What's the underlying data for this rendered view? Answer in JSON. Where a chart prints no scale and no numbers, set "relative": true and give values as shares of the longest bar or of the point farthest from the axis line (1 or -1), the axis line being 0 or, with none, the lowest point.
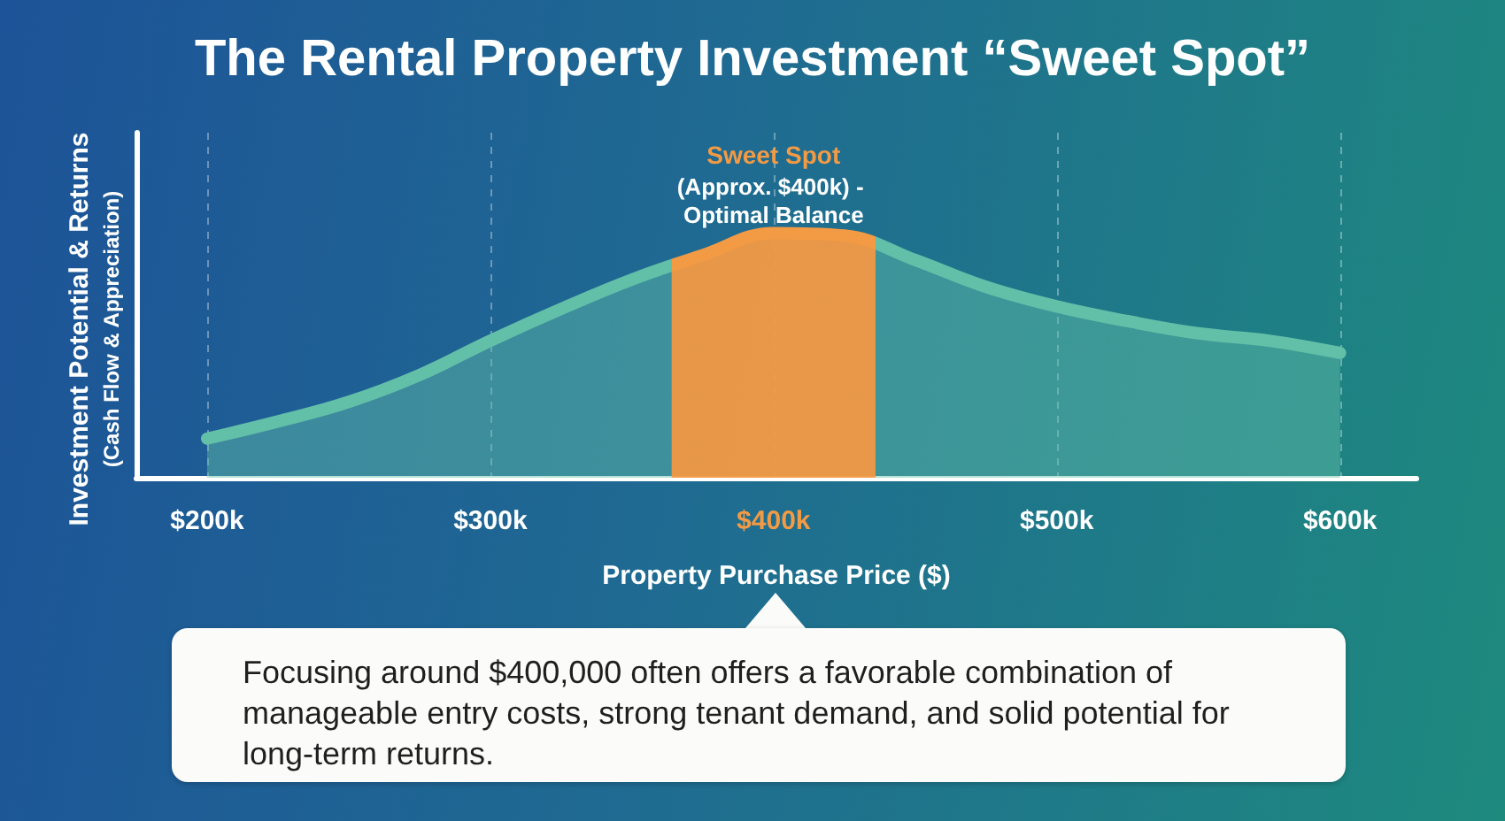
{
  "chart_data": {
    "type": "area",
    "title": "The Rental Property Investment “Sweet Spot”",
    "xlabel": "Property Purchase Price ($)",
    "ylabel": "Investment Potential & Returns",
    "relative": true,
    "x": [
      200,
      225,
      250,
      275,
      300,
      325,
      350,
      375,
      400,
      425,
      450,
      475,
      500,
      525,
      550,
      575,
      600
    ],
    "series": [
      {
        "color": "#62bfa8",
        "values": [
          0.16,
          0.23,
          0.31,
          0.42,
          0.56,
          0.69,
          0.81,
          0.91,
          1,
          0.99,
          0.89,
          0.78,
          0.7,
          0.64,
          0.59,
          0.56,
          0.51
        ]
      }
    ],
    "xlim": [
      175,
      627
    ],
    "xticks": [
      {
        "value": 200,
        "label": "$200k"
      },
      {
        "value": 300,
        "label": "$300k"
      },
      {
        "value": 400,
        "label": "$400k"
      },
      {
        "value": 500,
        "label": "$500k"
      },
      {
        "value": 600,
        "label": "$600k"
      }
    ],
    "grid": "x",
    "marker": "none",
    "line_style": "solid",
    "bands": [
      {
        "axis": "x",
        "from": 364,
        "to": 436,
        "label": "Sweet Spot",
        "color": "#f39a44"
      }
    ],
    "annotations": [
      "(Cash Flow & Appreciation)",
      "(Approx. $400k) - Optimal Balance",
      "Focusing around $400,000 often offers a favorable combination of manageable entry costs, strong tenant demand, and solid potential for long-term returns."
    ]
  }
}
